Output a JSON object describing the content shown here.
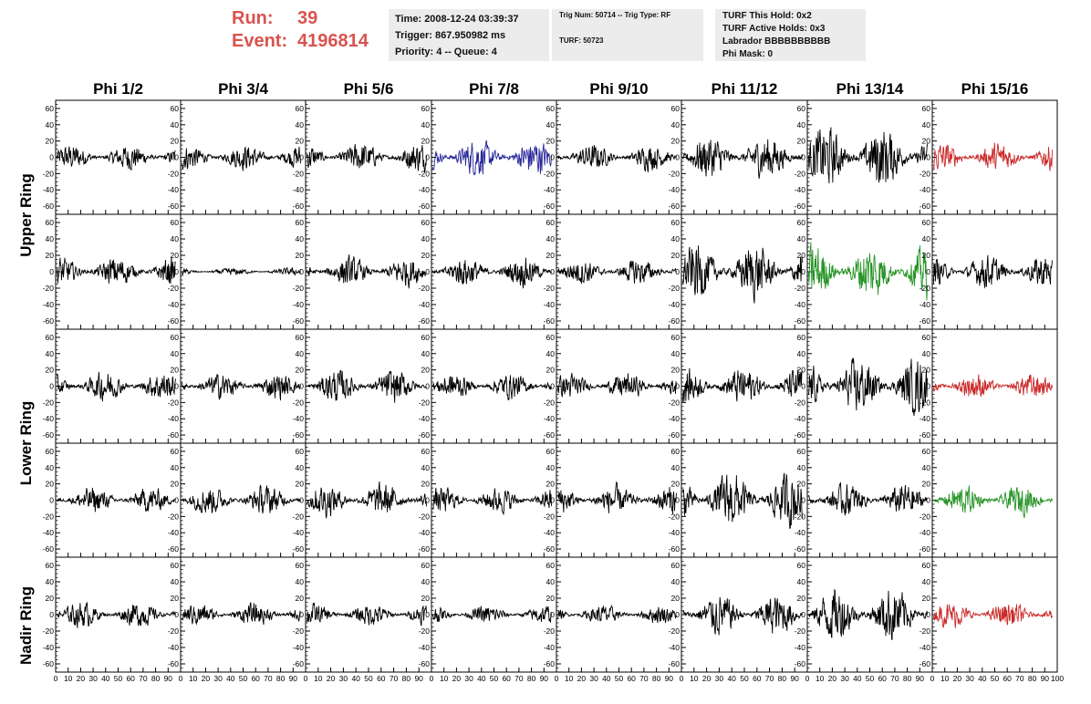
{
  "header": {
    "run_label": "Run:",
    "run_value": "39",
    "event_label": "Event:",
    "event_value": "4196814"
  },
  "time_box": {
    "time": "Time: 2008-12-24 03:39:37",
    "trigger": "Trigger: 867.950982 ms",
    "priority": "Priority: 4 -- Queue: 4"
  },
  "trig_box": {
    "trig": "Trig Num: 50714 -- Trig Type: RF",
    "turf": "TURF: 50723"
  },
  "turf_box": {
    "this_hold": "TURF This Hold: 0x2",
    "active_holds": "TURF Active Holds: 0x3",
    "labrador": "Labrador BBBBBBBBBB",
    "phi_mask": "Phi Mask: 0"
  },
  "columns": [
    "Phi 1/2",
    "Phi 3/4",
    "Phi 5/6",
    "Phi 7/8",
    "Phi 9/10",
    "Phi 11/12",
    "Phi 13/14",
    "Phi 15/16"
  ],
  "rings": [
    "Upper Ring",
    "Lower Ring",
    "Nadir Ring"
  ],
  "axes": {
    "y_ticks": [
      60,
      40,
      20,
      0,
      -20,
      -40,
      -60
    ],
    "y_range": [
      -70,
      70
    ],
    "x_ticks": [
      0,
      10,
      20,
      30,
      40,
      50,
      60,
      70,
      80,
      90,
      100
    ],
    "x_range": [
      0,
      100
    ]
  },
  "colors": {
    "default": "#000000",
    "blue": "#27279a",
    "red": "#cc2a2a",
    "green": "#269326",
    "title_red": "#d9534f",
    "info_bg": "#ececec"
  },
  "panels": [
    {
      "color": "default",
      "amp": 14
    },
    {
      "color": "default",
      "amp": 14
    },
    {
      "color": "default",
      "amp": 16
    },
    {
      "color": "blue",
      "amp": 20
    },
    {
      "color": "default",
      "amp": 14
    },
    {
      "color": "default",
      "amp": 24
    },
    {
      "color": "default",
      "amp": 34
    },
    {
      "color": "red",
      "amp": 16
    },
    {
      "color": "default",
      "amp": 16
    },
    {
      "color": "default",
      "amp": 4
    },
    {
      "color": "default",
      "amp": 16
    },
    {
      "color": "default",
      "amp": 16
    },
    {
      "color": "default",
      "amp": 14
    },
    {
      "color": "default",
      "amp": 30
    },
    {
      "color": "green",
      "amp": 30
    },
    {
      "color": "default",
      "amp": 18
    },
    {
      "color": "default",
      "amp": 16
    },
    {
      "color": "default",
      "amp": 14
    },
    {
      "color": "default",
      "amp": 18
    },
    {
      "color": "default",
      "amp": 14
    },
    {
      "color": "default",
      "amp": 14
    },
    {
      "color": "default",
      "amp": 20
    },
    {
      "color": "default",
      "amp": 30
    },
    {
      "color": "red",
      "amp": 14
    },
    {
      "color": "default",
      "amp": 14
    },
    {
      "color": "default",
      "amp": 16
    },
    {
      "color": "default",
      "amp": 18
    },
    {
      "color": "default",
      "amp": 14
    },
    {
      "color": "default",
      "amp": 16
    },
    {
      "color": "default",
      "amp": 30
    },
    {
      "color": "default",
      "amp": 18
    },
    {
      "color": "green",
      "amp": 16
    },
    {
      "color": "default",
      "amp": 14
    },
    {
      "color": "default",
      "amp": 12
    },
    {
      "color": "default",
      "amp": 12
    },
    {
      "color": "default",
      "amp": 10
    },
    {
      "color": "default",
      "amp": 10
    },
    {
      "color": "default",
      "amp": 22
    },
    {
      "color": "default",
      "amp": 30
    },
    {
      "color": "red",
      "amp": 14
    }
  ]
}
